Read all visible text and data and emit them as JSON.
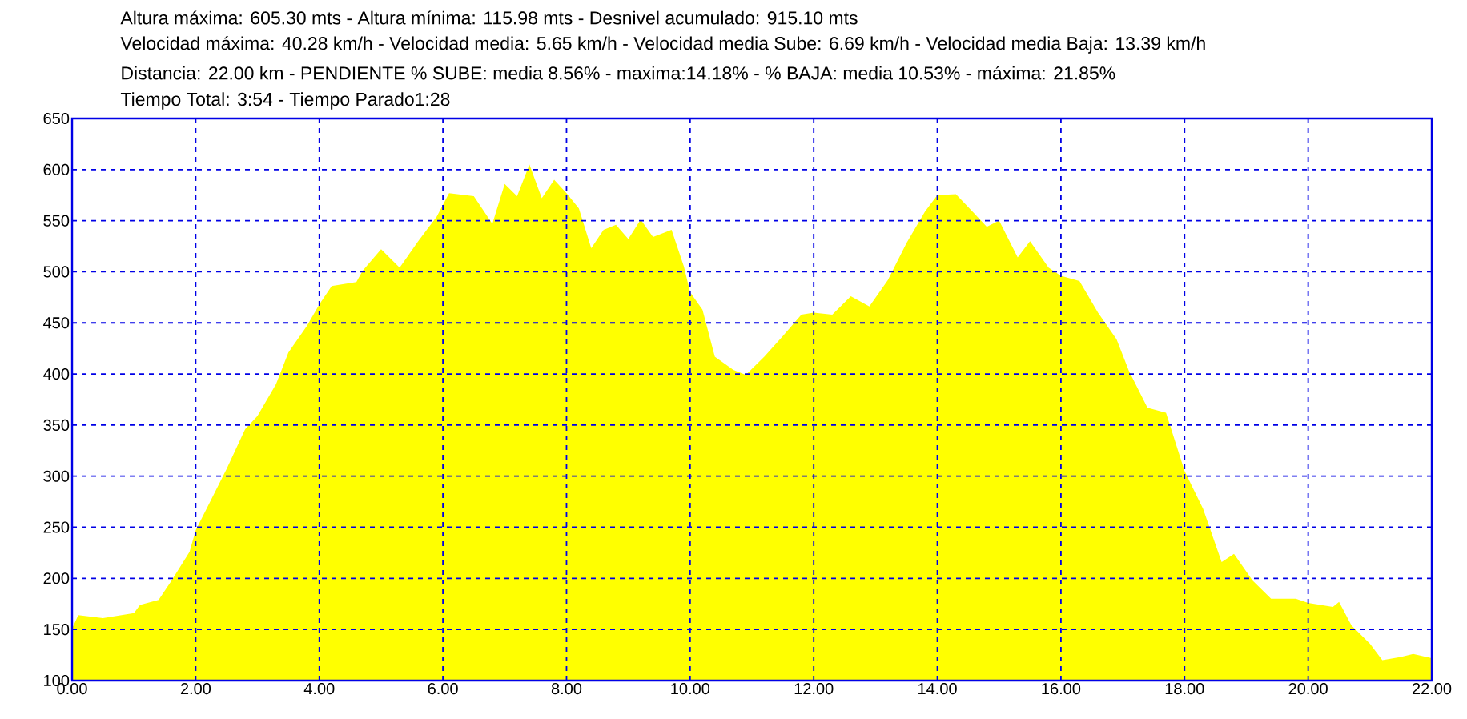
{
  "chart_data": {
    "type": "area",
    "title": "Altura máxima: 605.30 mts - Altura mínima: 115.98 mts - Desnivel acumulado: 915.10 mts",
    "annotations": [
      "Velocidad máxima: 40.28 km/h - Velocidad media: 5.65 km/h - Velocidad media Sube: 6.69 km/h - Velocidad media Baja: 13.39 km/h",
      "Distancia: 22.00 km - PENDIENTE  % SUBE: media 8.56% - maxima:14.18%  - % BAJA: media 10.53% - máxima: 21.85%",
      "Tiempo Total: 3:54 - Tiempo Parado1:28"
    ],
    "x": [
      0,
      0.1,
      0.5,
      1.0,
      1.1,
      1.4,
      1.6,
      1.9,
      2.0,
      2.5,
      2.8,
      3.0,
      3.3,
      3.5,
      3.8,
      4.0,
      4.2,
      4.6,
      4.7,
      5.0,
      5.3,
      5.6,
      5.9,
      6.1,
      6.5,
      6.8,
      7.0,
      7.2,
      7.4,
      7.6,
      7.8,
      8.0,
      8.2,
      8.4,
      8.6,
      8.8,
      9.0,
      9.2,
      9.4,
      9.7,
      9.9,
      10.0,
      10.2,
      10.4,
      10.7,
      10.9,
      11.2,
      11.5,
      11.8,
      12.0,
      12.3,
      12.6,
      12.9,
      13.2,
      13.5,
      13.8,
      14.0,
      14.3,
      14.6,
      14.8,
      15.0,
      15.3,
      15.5,
      15.8,
      16.0,
      16.3,
      16.6,
      16.9,
      17.1,
      17.4,
      17.7,
      18.0,
      18.3,
      18.6,
      18.8,
      19.1,
      19.4,
      19.8,
      20.0,
      20.4,
      20.5,
      20.7,
      21.0,
      21.2,
      21.5,
      21.7,
      22.0
    ],
    "values": [
      151,
      164,
      161,
      166,
      174,
      179,
      197,
      226,
      247,
      307,
      346,
      359,
      390,
      421,
      447,
      468,
      486,
      490,
      501,
      522,
      504,
      530,
      554,
      577,
      574,
      547,
      586,
      574,
      605,
      572,
      590,
      577,
      562,
      523,
      541,
      546,
      532,
      551,
      534,
      541,
      505,
      480,
      463,
      417,
      404,
      399,
      417,
      437,
      458,
      460,
      458,
      476,
      466,
      492,
      528,
      559,
      575,
      576,
      557,
      544,
      550,
      514,
      530,
      504,
      496,
      491,
      460,
      434,
      403,
      367,
      362,
      305,
      268,
      216,
      224,
      198,
      180,
      180,
      176,
      172,
      177,
      154,
      136,
      120,
      123,
      126,
      122
    ],
    "color": "#ffff00",
    "xlim": [
      0,
      22
    ],
    "ylim": [
      100,
      650
    ],
    "xticks": [
      {
        "value": 0,
        "label": "0.00"
      },
      {
        "value": 2,
        "label": "2.00"
      },
      {
        "value": 4,
        "label": "4.00"
      },
      {
        "value": 6,
        "label": "6.00"
      },
      {
        "value": 8,
        "label": "8.00"
      },
      {
        "value": 10,
        "label": "10.00"
      },
      {
        "value": 12,
        "label": "12.00"
      },
      {
        "value": 14,
        "label": "14.00"
      },
      {
        "value": 16,
        "label": "16.00"
      },
      {
        "value": 18,
        "label": "18.00"
      },
      {
        "value": 20,
        "label": "20.00"
      },
      {
        "value": 22,
        "label": "22.00"
      }
    ],
    "yticks": [
      100,
      150,
      200,
      250,
      300,
      350,
      400,
      450,
      500,
      550,
      600,
      650
    ],
    "grid": true
  }
}
